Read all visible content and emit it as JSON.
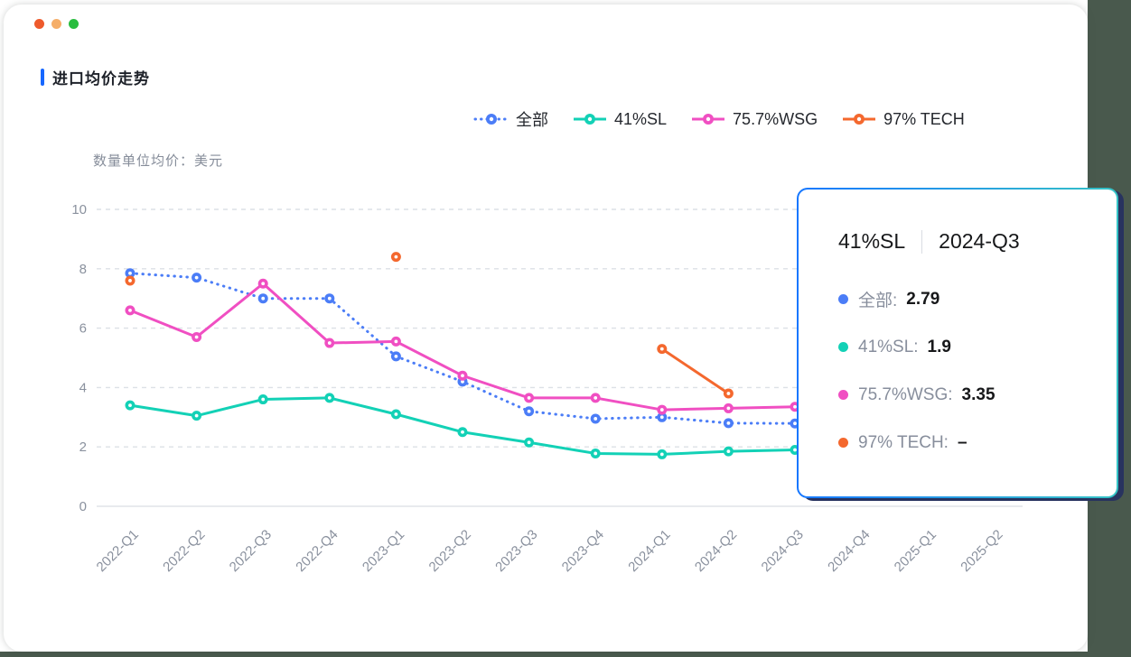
{
  "window": {
    "traffic_lights": [
      {
        "name": "close",
        "color": "#EE5A2C"
      },
      {
        "name": "minimize",
        "color": "#F5AE69"
      },
      {
        "name": "zoom",
        "color": "#29BD3F"
      }
    ],
    "desktop_edge_color": "#49594D"
  },
  "header": {
    "title": "进口均价走势",
    "accent_color": "#1667FF",
    "unit_label": "数量单位均价：美元"
  },
  "chart_data": {
    "type": "line",
    "title": "进口均价走势",
    "ylabel": "数量单位均价：美元",
    "ylim": [
      0,
      10
    ],
    "yticks": [
      0,
      2,
      4,
      6,
      8,
      10
    ],
    "grid": "dashed-horizontal",
    "legend_position": "top",
    "categories": [
      "2022-Q1",
      "2022-Q2",
      "2022-Q3",
      "2022-Q4",
      "2023-Q1",
      "2023-Q2",
      "2023-Q3",
      "2023-Q4",
      "2024-Q1",
      "2024-Q2",
      "2024-Q3",
      "2024-Q4",
      "2025-Q1",
      "2025-Q2"
    ],
    "series": [
      {
        "name": "全部",
        "color": "#4B7DF7",
        "line_style": "dotted",
        "values": [
          7.85,
          7.7,
          7.0,
          7.0,
          5.05,
          4.2,
          3.2,
          2.95,
          3.0,
          2.8,
          2.79,
          null,
          null,
          null
        ]
      },
      {
        "name": "41%SL",
        "color": "#13D1B6",
        "line_style": "solid",
        "values": [
          3.4,
          3.05,
          3.6,
          3.65,
          3.1,
          2.5,
          2.15,
          1.78,
          1.75,
          1.85,
          1.9,
          null,
          null,
          null
        ]
      },
      {
        "name": "75.7%WSG",
        "color": "#F04FC2",
        "line_style": "solid",
        "values": [
          6.6,
          5.7,
          7.5,
          5.5,
          5.55,
          4.4,
          3.65,
          3.65,
          3.25,
          3.3,
          3.35,
          null,
          null,
          null
        ]
      },
      {
        "name": "97% TECH",
        "color": "#F4682E",
        "line_style": "solid",
        "values": [
          7.6,
          null,
          null,
          null,
          8.4,
          null,
          null,
          null,
          5.3,
          3.8,
          null,
          null,
          null,
          null
        ]
      }
    ]
  },
  "tooltip": {
    "series_name": "41%SL",
    "period": "2024-Q3",
    "rows": [
      {
        "label": "全部:",
        "value": "2.79",
        "color": "#4B7DF7"
      },
      {
        "label": "41%SL:",
        "value": "1.9",
        "color": "#13D1B6"
      },
      {
        "label": "75.7%WSG:",
        "value": "3.35",
        "color": "#F04FC2"
      },
      {
        "label": "97% TECH:",
        "value": "–",
        "color": "#F4682E"
      }
    ]
  }
}
